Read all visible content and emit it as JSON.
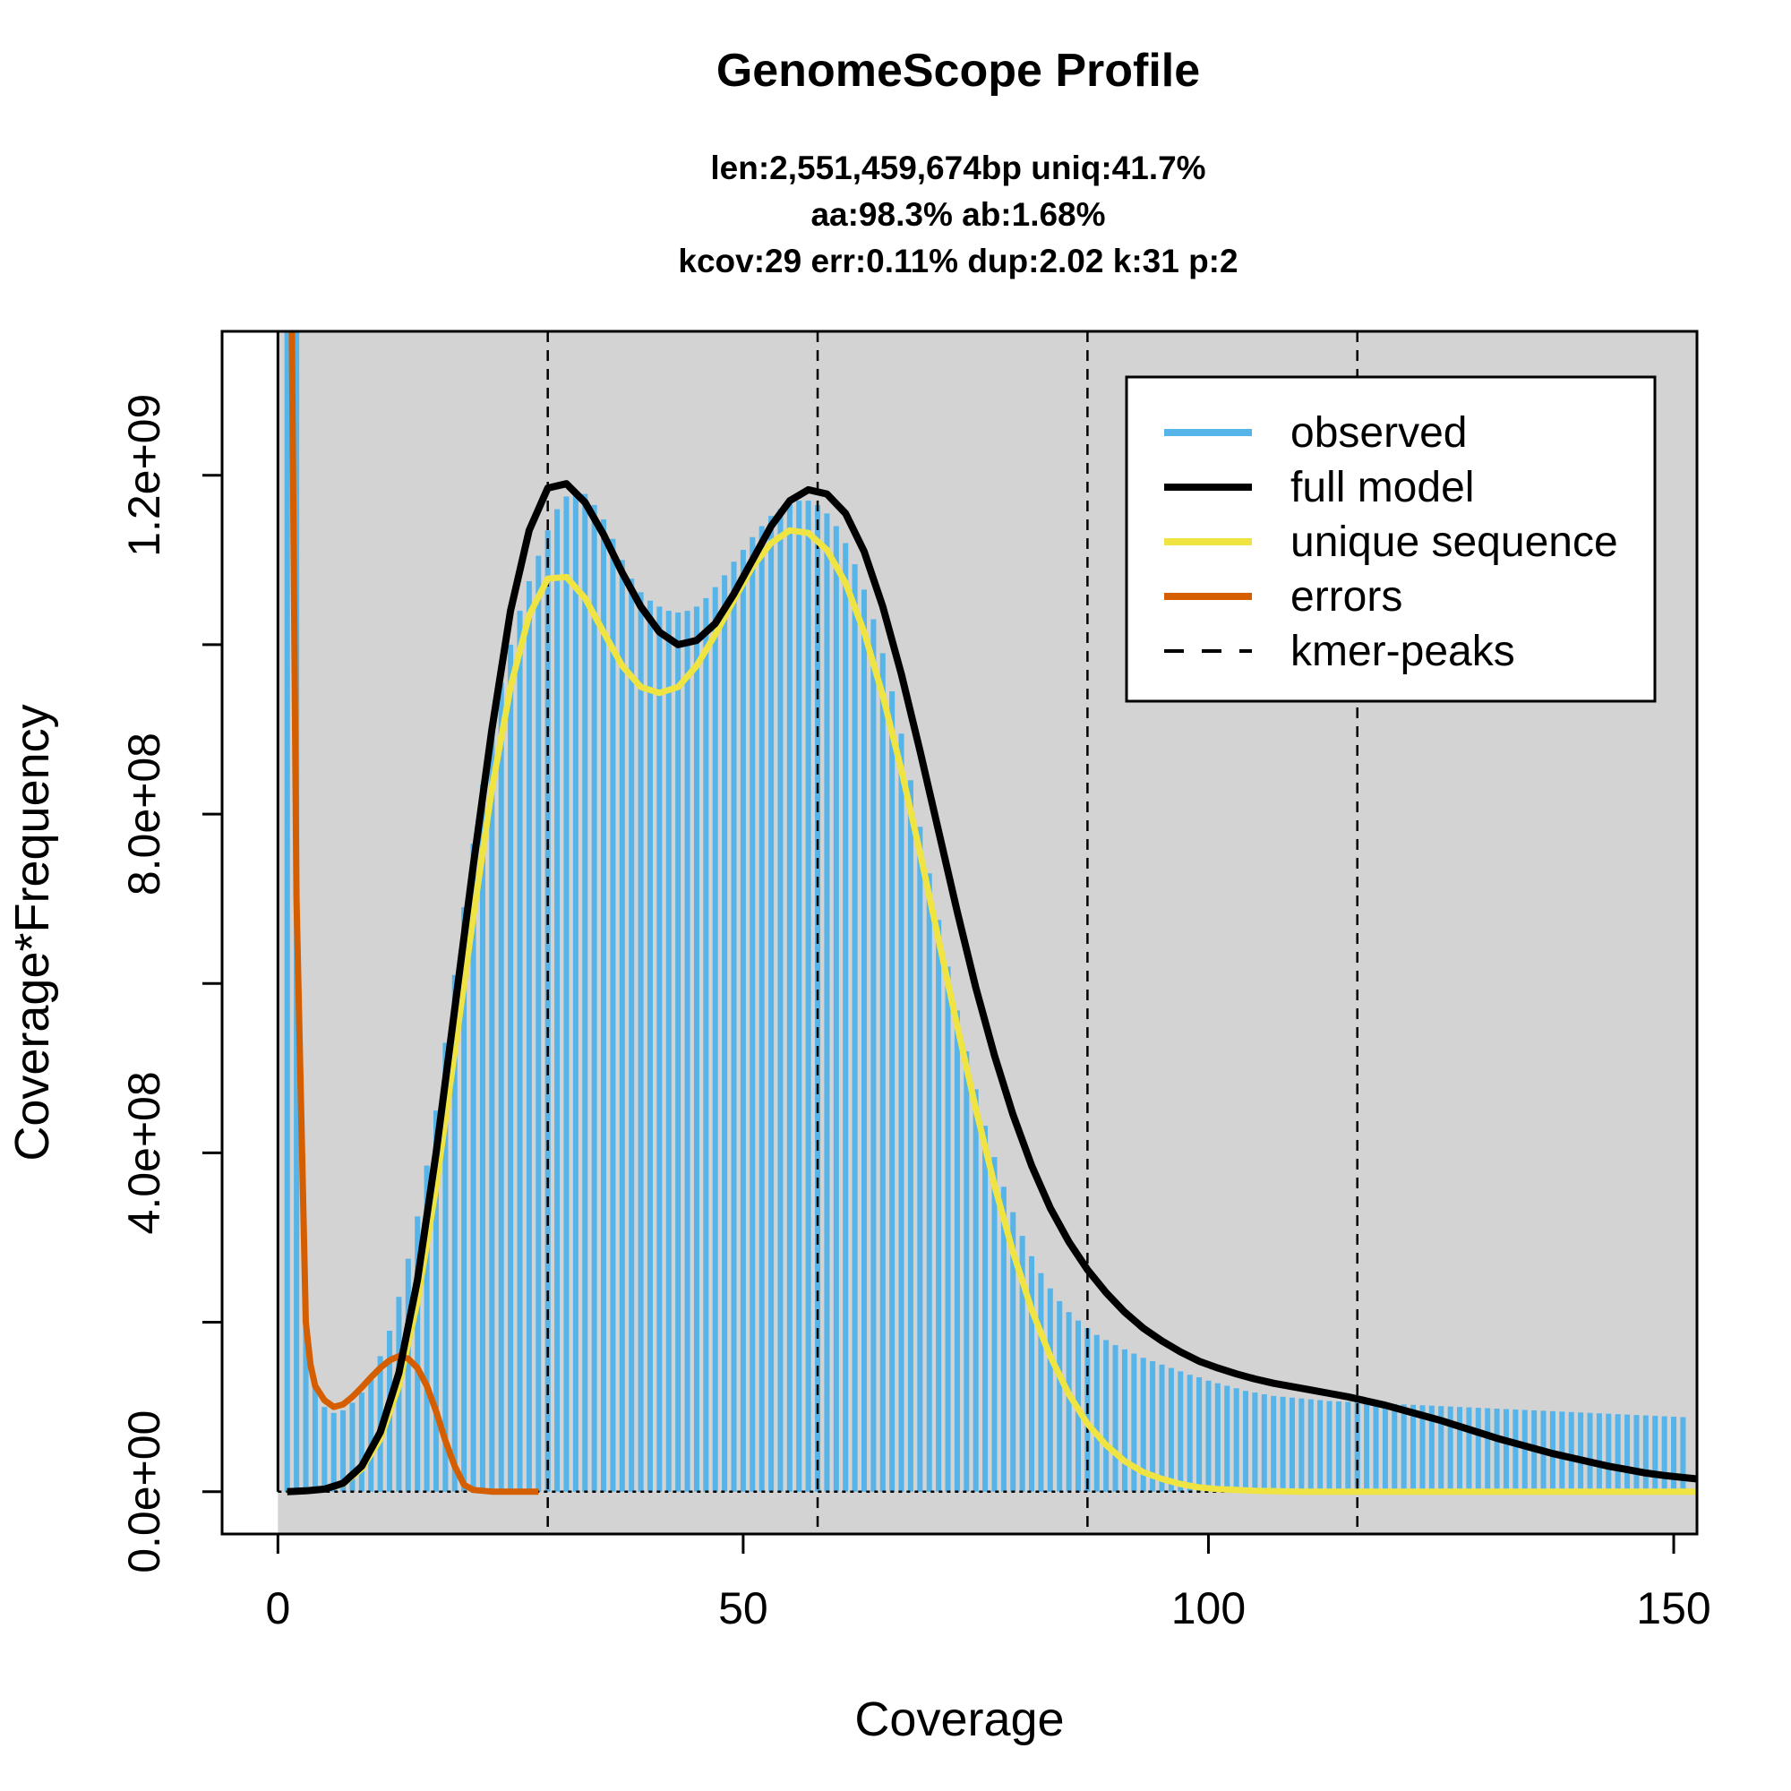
{
  "chart_data": {
    "type": "bar",
    "title": "GenomeScope Profile",
    "subtitle_lines": [
      "len:2,551,459,674bp uniq:41.7%",
      "aa:98.3% ab:1.68%",
      "kcov:29 err:0.11%  dup:2.02  k:31 p:2"
    ],
    "xlabel": "Coverage",
    "ylabel": "Coverage*Frequency",
    "xlim": [
      -6,
      152.5
    ],
    "ylim": [
      -50000000,
      1370000000
    ],
    "x_ticks": [
      0,
      50,
      100,
      150
    ],
    "x_tick_labels": [
      "0",
      "50",
      "100",
      "150"
    ],
    "y_ticks": [
      0,
      200000000,
      400000000,
      600000000,
      800000000,
      1000000000,
      1200000000
    ],
    "y_tick_labels": [
      "0.0e+00",
      "",
      "4.0e+08",
      "",
      "8.0e+08",
      "",
      "1.2e+09"
    ],
    "background": "#d3d3d3",
    "grid": false,
    "legend_position": "top-right",
    "legend": [
      {
        "label": "observed",
        "color": "#56b4e9",
        "style": "solid"
      },
      {
        "label": "full model",
        "color": "#000000",
        "style": "solid"
      },
      {
        "label": "unique sequence",
        "color": "#f0e442",
        "style": "solid"
      },
      {
        "label": "errors",
        "color": "#d55e00",
        "style": "solid"
      },
      {
        "label": "kmer-peaks",
        "color": "#000000",
        "style": "dashed"
      }
    ],
    "kmer_peaks": [
      29,
      58,
      87,
      116
    ],
    "observed": {
      "name": "observed",
      "color": "#56b4e9",
      "x_start": 1,
      "x_step": 1,
      "values": [
        1370000000,
        1370000000,
        200000000,
        125000000,
        100000000,
        93000000,
        96000000,
        105000000,
        117000000,
        135000000,
        160000000,
        190000000,
        230000000,
        275000000,
        325000000,
        385000000,
        450000000,
        530000000,
        610000000,
        690000000,
        765000000,
        835000000,
        900000000,
        955000000,
        1000000000,
        1040000000,
        1075000000,
        1105000000,
        1135000000,
        1160000000,
        1175000000,
        1182000000,
        1178000000,
        1165000000,
        1148000000,
        1125000000,
        1100000000,
        1078000000,
        1062000000,
        1052000000,
        1045000000,
        1040000000,
        1038000000,
        1040000000,
        1045000000,
        1055000000,
        1068000000,
        1082000000,
        1098000000,
        1112000000,
        1127000000,
        1140000000,
        1152000000,
        1160000000,
        1166000000,
        1170000000,
        1170000000,
        1165000000,
        1155000000,
        1140000000,
        1120000000,
        1095000000,
        1065000000,
        1030000000,
        990000000,
        945000000,
        895000000,
        840000000,
        785000000,
        730000000,
        675000000,
        620000000,
        568000000,
        520000000,
        475000000,
        432000000,
        395000000,
        360000000,
        330000000,
        302000000,
        278000000,
        258000000,
        240000000,
        225000000,
        212000000,
        202000000,
        193000000,
        185000000,
        179000000,
        173000000,
        168000000,
        163000000,
        158000000,
        154000000,
        150000000,
        146000000,
        142000000,
        138000000,
        135000000,
        131000000,
        128000000,
        125000000,
        122000000,
        119000000,
        117000000,
        115000000,
        113000000,
        112000000,
        111000000,
        110000000,
        109000000,
        108000000,
        107000000,
        106500000,
        106000000,
        105500000,
        105000000,
        104500000,
        104000000,
        103500000,
        103000000,
        102500000,
        102000000,
        101500000,
        101000000,
        100500000,
        100000000,
        99500000,
        99000000,
        98500000,
        98000000,
        97500000,
        97000000,
        96500000,
        96000000,
        95500000,
        95000000,
        94500000,
        94000000,
        93500000,
        93000000,
        92500000,
        92000000,
        91500000,
        91000000,
        90500000,
        90000000,
        89500000,
        89000000,
        88500000,
        88000000
      ]
    },
    "full_model": {
      "name": "full model",
      "color": "#000000",
      "points": [
        [
          1,
          0
        ],
        [
          3,
          1000000
        ],
        [
          5,
          3000000
        ],
        [
          7,
          10000000
        ],
        [
          9,
          30000000
        ],
        [
          11,
          70000000
        ],
        [
          13,
          140000000
        ],
        [
          15,
          250000000
        ],
        [
          17,
          400000000
        ],
        [
          19,
          570000000
        ],
        [
          21,
          740000000
        ],
        [
          23,
          900000000
        ],
        [
          25,
          1040000000
        ],
        [
          27,
          1135000000
        ],
        [
          29,
          1185000000
        ],
        [
          31,
          1190000000
        ],
        [
          33,
          1168000000
        ],
        [
          35,
          1130000000
        ],
        [
          37,
          1085000000
        ],
        [
          39,
          1045000000
        ],
        [
          41,
          1015000000
        ],
        [
          43,
          1000000000
        ],
        [
          45,
          1005000000
        ],
        [
          47,
          1025000000
        ],
        [
          49,
          1060000000
        ],
        [
          51,
          1100000000
        ],
        [
          53,
          1140000000
        ],
        [
          55,
          1170000000
        ],
        [
          57,
          1183000000
        ],
        [
          59,
          1178000000
        ],
        [
          61,
          1155000000
        ],
        [
          63,
          1110000000
        ],
        [
          65,
          1045000000
        ],
        [
          67,
          965000000
        ],
        [
          69,
          875000000
        ],
        [
          71,
          780000000
        ],
        [
          73,
          685000000
        ],
        [
          75,
          595000000
        ],
        [
          77,
          515000000
        ],
        [
          79,
          445000000
        ],
        [
          81,
          385000000
        ],
        [
          83,
          335000000
        ],
        [
          85,
          295000000
        ],
        [
          87,
          262000000
        ],
        [
          89,
          235000000
        ],
        [
          91,
          212000000
        ],
        [
          93,
          193000000
        ],
        [
          95,
          178000000
        ],
        [
          97,
          165000000
        ],
        [
          99,
          154000000
        ],
        [
          101,
          146000000
        ],
        [
          103,
          139000000
        ],
        [
          105,
          133000000
        ],
        [
          107,
          128000000
        ],
        [
          109,
          124000000
        ],
        [
          111,
          120000000
        ],
        [
          113,
          116000000
        ],
        [
          115,
          112000000
        ],
        [
          117,
          107000000
        ],
        [
          119,
          102000000
        ],
        [
          121,
          96000000
        ],
        [
          123,
          90000000
        ],
        [
          125,
          84000000
        ],
        [
          127,
          77000000
        ],
        [
          129,
          70000000
        ],
        [
          131,
          63000000
        ],
        [
          133,
          57000000
        ],
        [
          135,
          51000000
        ],
        [
          137,
          45000000
        ],
        [
          139,
          40000000
        ],
        [
          141,
          35000000
        ],
        [
          143,
          30000000
        ],
        [
          145,
          26000000
        ],
        [
          147,
          22000000
        ],
        [
          149,
          19000000
        ],
        [
          152.5,
          15000000
        ]
      ]
    },
    "unique_sequence": {
      "name": "unique sequence",
      "color": "#f0e442",
      "points": [
        [
          1,
          0
        ],
        [
          3,
          1000000
        ],
        [
          5,
          3000000
        ],
        [
          7,
          9000000
        ],
        [
          9,
          27000000
        ],
        [
          11,
          62000000
        ],
        [
          13,
          125000000
        ],
        [
          15,
          225000000
        ],
        [
          17,
          360000000
        ],
        [
          19,
          520000000
        ],
        [
          21,
          680000000
        ],
        [
          23,
          830000000
        ],
        [
          25,
          950000000
        ],
        [
          27,
          1035000000
        ],
        [
          29,
          1078000000
        ],
        [
          31,
          1080000000
        ],
        [
          33,
          1055000000
        ],
        [
          35,
          1015000000
        ],
        [
          37,
          975000000
        ],
        [
          39,
          950000000
        ],
        [
          41,
          943000000
        ],
        [
          43,
          950000000
        ],
        [
          45,
          975000000
        ],
        [
          47,
          1012000000
        ],
        [
          49,
          1053000000
        ],
        [
          51,
          1092000000
        ],
        [
          53,
          1120000000
        ],
        [
          55,
          1135000000
        ],
        [
          57,
          1132000000
        ],
        [
          59,
          1112000000
        ],
        [
          61,
          1073000000
        ],
        [
          63,
          1015000000
        ],
        [
          65,
          940000000
        ],
        [
          67,
          852000000
        ],
        [
          69,
          755000000
        ],
        [
          71,
          652000000
        ],
        [
          73,
          550000000
        ],
        [
          75,
          452000000
        ],
        [
          77,
          362000000
        ],
        [
          79,
          283000000
        ],
        [
          81,
          215000000
        ],
        [
          83,
          160000000
        ],
        [
          85,
          115000000
        ],
        [
          87,
          80000000
        ],
        [
          89,
          55000000
        ],
        [
          91,
          36000000
        ],
        [
          93,
          23000000
        ],
        [
          95,
          15000000
        ],
        [
          97,
          9000000
        ],
        [
          99,
          5000000
        ],
        [
          101,
          3000000
        ],
        [
          103,
          2000000
        ],
        [
          105,
          1000000
        ],
        [
          110,
          0
        ],
        [
          120,
          0
        ],
        [
          130,
          0
        ],
        [
          140,
          0
        ],
        [
          152.5,
          0
        ]
      ]
    },
    "errors": {
      "name": "errors",
      "color": "#d55e00",
      "points": [
        [
          1.5,
          1370000000
        ],
        [
          2,
          700000000
        ],
        [
          2.5,
          450000000
        ],
        [
          3,
          200000000
        ],
        [
          3.5,
          150000000
        ],
        [
          4,
          125000000
        ],
        [
          5,
          108000000
        ],
        [
          6,
          100000000
        ],
        [
          7,
          103000000
        ],
        [
          8,
          112000000
        ],
        [
          9,
          123000000
        ],
        [
          10,
          135000000
        ],
        [
          11,
          146000000
        ],
        [
          12,
          155000000
        ],
        [
          13,
          160000000
        ],
        [
          14,
          157000000
        ],
        [
          15,
          146000000
        ],
        [
          16,
          125000000
        ],
        [
          17,
          95000000
        ],
        [
          18,
          60000000
        ],
        [
          19,
          30000000
        ],
        [
          20,
          8000000
        ],
        [
          21,
          2000000
        ],
        [
          23,
          0
        ],
        [
          25,
          0
        ],
        [
          28,
          0
        ]
      ]
    }
  }
}
